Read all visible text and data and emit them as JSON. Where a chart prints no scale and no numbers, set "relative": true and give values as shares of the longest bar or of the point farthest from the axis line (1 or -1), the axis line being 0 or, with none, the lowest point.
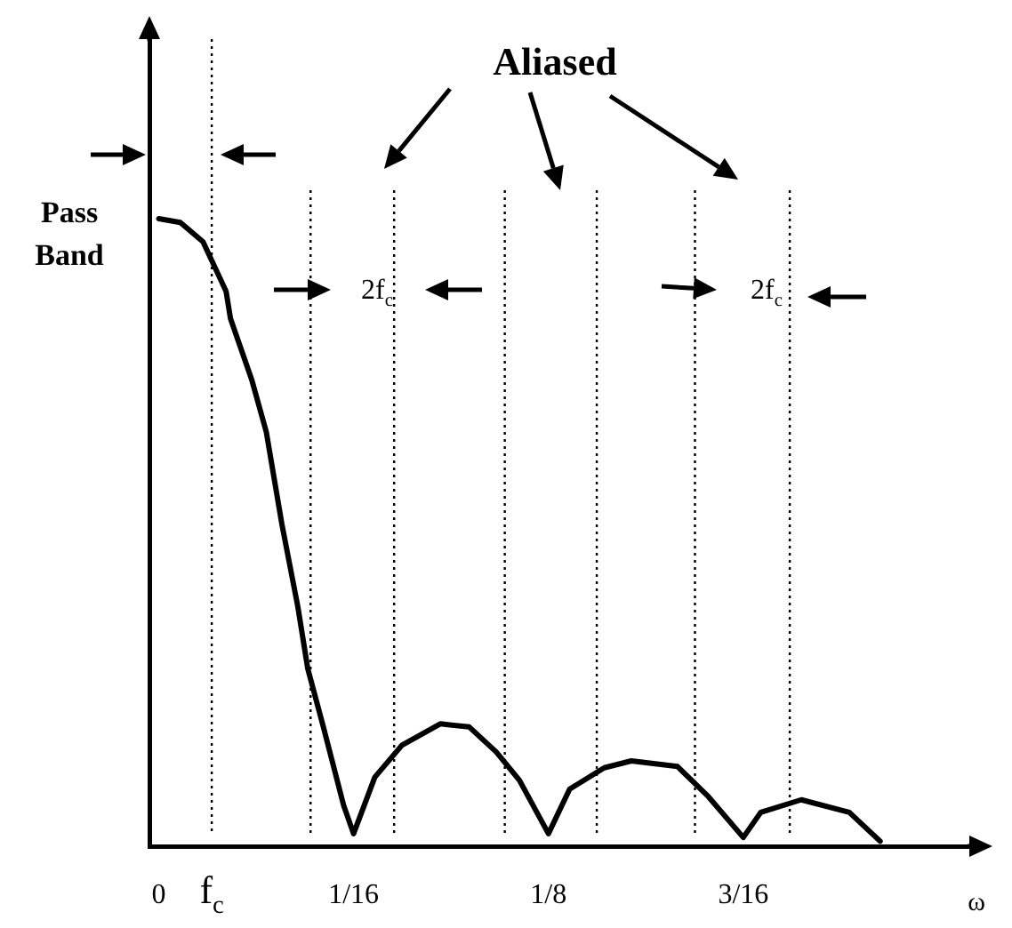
{
  "chart_data": {
    "type": "line",
    "xlabel": "ω",
    "annotations": [
      "Aliased",
      "Pass Band",
      "2f$_{c}$",
      "2f$_{c}$"
    ],
    "color": "#000000",
    "relative": true,
    "marker": "none",
    "line_style": "solid",
    "grid": false,
    "legend": false,
    "x": [
      0,
      0.0069,
      0.0142,
      0.0216,
      0.023,
      0.0299,
      0.0345,
      0.0395,
      0.0446,
      0.0478,
      0.0528,
      0.0593,
      0.0625,
      0.0693,
      0.078,
      0.0903,
      0.0996,
      0.1083,
      0.1157,
      0.125,
      0.1318,
      0.1429,
      0.1516,
      0.1664,
      0.1763,
      0.1875,
      0.1931,
      0.2061,
      0.2215,
      0.2314
    ],
    "values": [
      1,
      0.994,
      0.963,
      0.884,
      0.841,
      0.742,
      0.66,
      0.513,
      0.382,
      0.283,
      0.19,
      0.065,
      0.02,
      0.11,
      0.161,
      0.195,
      0.19,
      0.15,
      0.105,
      0.02,
      0.091,
      0.125,
      0.136,
      0.127,
      0.079,
      0.014,
      0.054,
      0.074,
      0.054,
      0.008
    ],
    "xlim": [
      -0.003,
      0.26
    ],
    "xticks": [
      0,
      {
        "value": 0.017,
        "label": "f$_{c}$"
      },
      {
        "value": 0.0625,
        "label": "1/16"
      },
      {
        "value": 0.125,
        "label": "1/8"
      },
      {
        "value": 0.1875,
        "label": "3/16"
      }
    ],
    "ref_lines": [
      {
        "axis": "x",
        "value": 0.017,
        "line_style": "dotted"
      },
      {
        "axis": "x",
        "value": 0.0487,
        "line_style": "dotted"
      },
      {
        "axis": "x",
        "value": 0.0755,
        "line_style": "dotted"
      },
      {
        "axis": "x",
        "value": 0.111,
        "line_style": "dotted"
      },
      {
        "axis": "x",
        "value": 0.1405,
        "line_style": "dotted"
      },
      {
        "axis": "x",
        "value": 0.172,
        "line_style": "dotted"
      },
      {
        "axis": "x",
        "value": 0.2024,
        "line_style": "dotted"
      }
    ]
  }
}
